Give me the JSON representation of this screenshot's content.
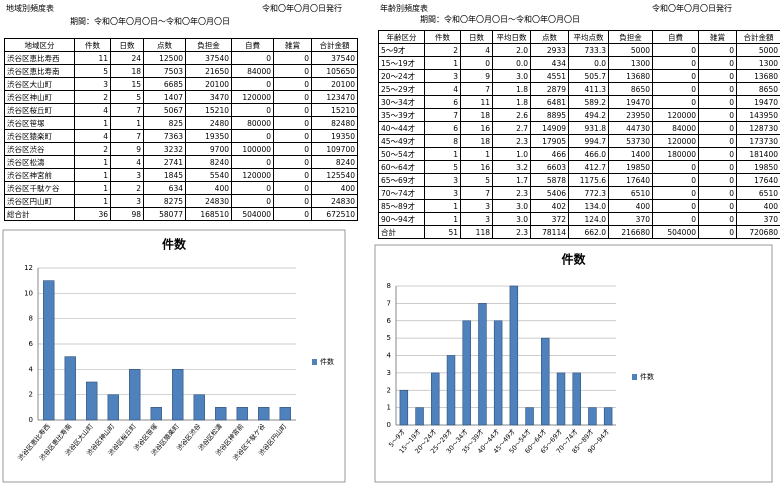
{
  "left": {
    "title": "地域別頻度表",
    "issued": "令和〇年〇月〇日発行",
    "period": "期間：令和〇年〇月〇日～令和〇年〇月〇日",
    "table": {
      "header": [
        "地域区分",
        "件数",
        "日数",
        "点数",
        "負担金",
        "自費",
        "雑賞",
        "合計金額"
      ],
      "rows": [
        [
          "渋谷区恵比寿西",
          "11",
          "24",
          "12500",
          "37540",
          "0",
          "0",
          "37540"
        ],
        [
          "渋谷区恵比寿南",
          "5",
          "18",
          "7503",
          "21650",
          "84000",
          "0",
          "105650"
        ],
        [
          "渋谷区大山町",
          "3",
          "15",
          "6685",
          "20100",
          "0",
          "0",
          "20100"
        ],
        [
          "渋谷区神山町",
          "2",
          "5",
          "1407",
          "3470",
          "120000",
          "0",
          "123470"
        ],
        [
          "渋谷区桜丘町",
          "4",
          "7",
          "5067",
          "15210",
          "0",
          "0",
          "15210"
        ],
        [
          "渋谷区笹塚",
          "1",
          "1",
          "825",
          "2480",
          "80000",
          "0",
          "82480"
        ],
        [
          "渋谷区猿楽町",
          "4",
          "7",
          "7363",
          "19350",
          "0",
          "0",
          "19350"
        ],
        [
          "渋谷区渋谷",
          "2",
          "9",
          "3232",
          "9700",
          "100000",
          "0",
          "109700"
        ],
        [
          "渋谷区松濤",
          "1",
          "4",
          "2741",
          "8240",
          "0",
          "0",
          "8240"
        ],
        [
          "渋谷区神宮前",
          "1",
          "3",
          "1845",
          "5540",
          "120000",
          "0",
          "125540"
        ],
        [
          "渋谷区千駄ケ谷",
          "1",
          "2",
          "634",
          "400",
          "0",
          "0",
          "400"
        ],
        [
          "渋谷区円山町",
          "1",
          "3",
          "8275",
          "24830",
          "0",
          "0",
          "24830"
        ],
        [
          "総合計",
          "36",
          "98",
          "58077",
          "168510",
          "504000",
          "0",
          "672510"
        ]
      ]
    }
  },
  "right": {
    "title": "年齢別頻度表",
    "issued": "令和〇年〇月〇日発行",
    "period": "期間：令和〇年〇月〇日～令和〇年〇月〇日",
    "table": {
      "header": [
        "年齢区分",
        "件数",
        "日数",
        "平均日数",
        "点数",
        "平均点数",
        "負担金",
        "自費",
        "雑賞",
        "合計金額"
      ],
      "rows": [
        [
          "5～9才",
          "2",
          "4",
          "2.0",
          "2933",
          "733.3",
          "5000",
          "0",
          "0",
          "5000"
        ],
        [
          "15～19才",
          "1",
          "0",
          "0.0",
          "434",
          "0.0",
          "1300",
          "0",
          "0",
          "1300"
        ],
        [
          "20～24才",
          "3",
          "9",
          "3.0",
          "4551",
          "505.7",
          "13680",
          "0",
          "0",
          "13680"
        ],
        [
          "25～29才",
          "4",
          "7",
          "1.8",
          "2879",
          "411.3",
          "8650",
          "0",
          "0",
          "8650"
        ],
        [
          "30～34才",
          "6",
          "11",
          "1.8",
          "6481",
          "589.2",
          "19470",
          "0",
          "0",
          "19470"
        ],
        [
          "35～39才",
          "7",
          "18",
          "2.6",
          "8895",
          "494.2",
          "23950",
          "120000",
          "0",
          "143950"
        ],
        [
          "40～44才",
          "6",
          "16",
          "2.7",
          "14909",
          "931.8",
          "44730",
          "84000",
          "0",
          "128730"
        ],
        [
          "45～49才",
          "8",
          "18",
          "2.3",
          "17905",
          "994.7",
          "53730",
          "120000",
          "0",
          "173730"
        ],
        [
          "50～54才",
          "1",
          "1",
          "1.0",
          "466",
          "466.0",
          "1400",
          "180000",
          "0",
          "181400"
        ],
        [
          "60～64才",
          "5",
          "16",
          "3.2",
          "6603",
          "412.7",
          "19850",
          "0",
          "0",
          "19850"
        ],
        [
          "65～69才",
          "3",
          "5",
          "1.7",
          "5878",
          "1175.6",
          "17640",
          "0",
          "0",
          "17640"
        ],
        [
          "70～74才",
          "3",
          "7",
          "2.3",
          "5406",
          "772.3",
          "6510",
          "0",
          "0",
          "6510"
        ],
        [
          "85～89才",
          "1",
          "3",
          "3.0",
          "402",
          "134.0",
          "400",
          "0",
          "0",
          "400"
        ],
        [
          "90～94才",
          "1",
          "3",
          "3.0",
          "372",
          "124.0",
          "370",
          "0",
          "0",
          "370"
        ],
        [
          "合計",
          "51",
          "118",
          "2.3",
          "78114",
          "662.0",
          "216680",
          "504000",
          "0",
          "720680"
        ]
      ]
    }
  },
  "chart_data": [
    {
      "type": "bar",
      "title": "件数",
      "categories": [
        "渋谷区恵比寿西",
        "渋谷区恵比寿南",
        "渋谷区大山町",
        "渋谷区神山町",
        "渋谷区桜丘町",
        "渋谷区笹塚",
        "渋谷区猿楽町",
        "渋谷区渋谷",
        "渋谷区松濤",
        "渋谷区神宮前",
        "渋谷区千駄ケ谷",
        "渋谷区円山町"
      ],
      "series": [
        {
          "name": "件数",
          "color": "#4f81bd",
          "values": [
            11,
            5,
            3,
            2,
            4,
            1,
            4,
            2,
            1,
            1,
            1,
            1
          ]
        }
      ],
      "ylim": [
        0,
        12
      ],
      "yticks": [
        0,
        2,
        4,
        6,
        8,
        10,
        12
      ],
      "grid": true,
      "legend": "right"
    },
    {
      "type": "bar",
      "title": "件数",
      "categories": [
        "5～9才",
        "15～19才",
        "20～24才",
        "25～29才",
        "30～34才",
        "35～39才",
        "40～44才",
        "45～49才",
        "50～54才",
        "60～64才",
        "65～69才",
        "70～74才",
        "85～89才",
        "90～94才"
      ],
      "series": [
        {
          "name": "件数",
          "color": "#4f81bd",
          "values": [
            2,
            1,
            3,
            4,
            6,
            7,
            6,
            8,
            1,
            5,
            3,
            3,
            1,
            1
          ]
        }
      ],
      "ylim": [
        0,
        8
      ],
      "yticks": [
        0,
        1,
        2,
        3,
        4,
        5,
        6,
        7,
        8
      ],
      "grid": true,
      "legend": "right"
    }
  ]
}
